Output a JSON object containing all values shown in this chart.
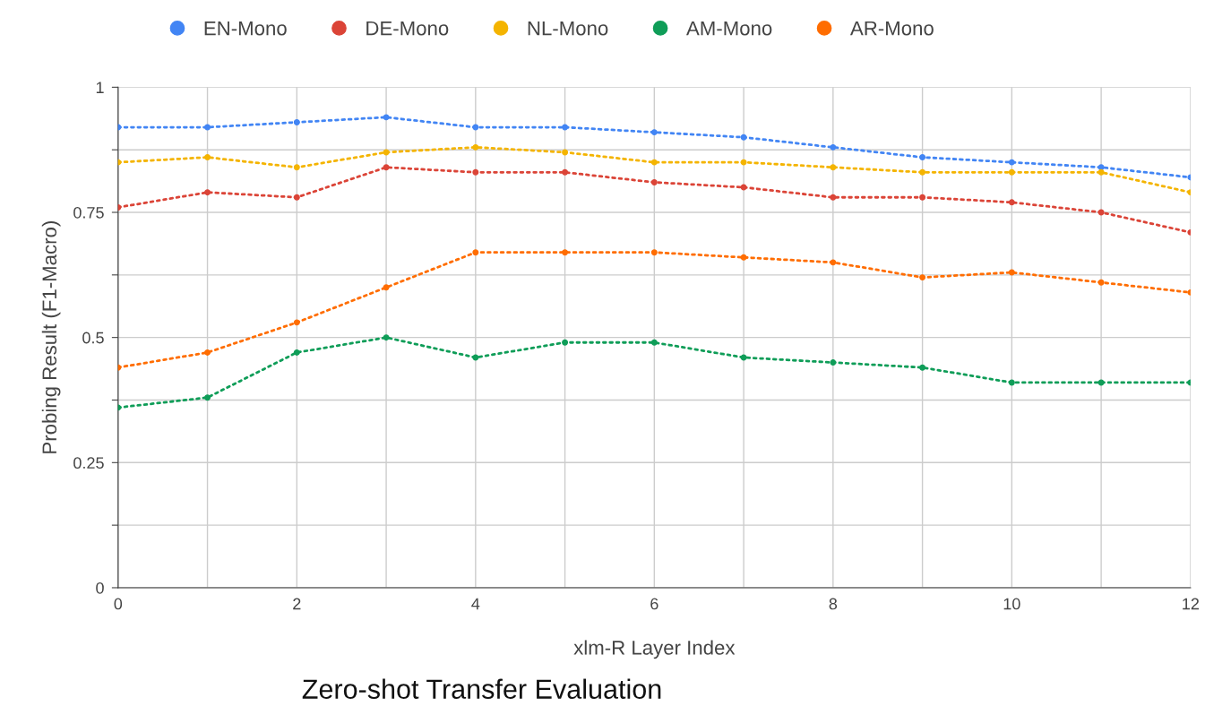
{
  "chart_data": {
    "type": "line",
    "title": "Zero-shot Transfer Evaluation",
    "xlabel": "xlm-R Layer Index",
    "ylabel": "Probing Result (F1-Macro)",
    "x": [
      0,
      1,
      2,
      3,
      4,
      5,
      6,
      7,
      8,
      9,
      10,
      11,
      12
    ],
    "series": [
      {
        "name": "EN-Mono",
        "color": "#4285f4",
        "values": [
          0.92,
          0.92,
          0.93,
          0.94,
          0.92,
          0.92,
          0.91,
          0.9,
          0.88,
          0.86,
          0.85,
          0.84,
          0.82
        ]
      },
      {
        "name": "DE-Mono",
        "color": "#db4437",
        "values": [
          0.76,
          0.79,
          0.78,
          0.84,
          0.83,
          0.83,
          0.81,
          0.8,
          0.78,
          0.78,
          0.77,
          0.75,
          0.71
        ]
      },
      {
        "name": "NL-Mono",
        "color": "#f4b400",
        "values": [
          0.85,
          0.86,
          0.84,
          0.87,
          0.88,
          0.87,
          0.85,
          0.85,
          0.84,
          0.83,
          0.83,
          0.83,
          0.79
        ]
      },
      {
        "name": "AM-Mono",
        "color": "#0f9d58",
        "values": [
          0.36,
          0.38,
          0.47,
          0.5,
          0.46,
          0.49,
          0.49,
          0.46,
          0.45,
          0.44,
          0.41,
          0.41,
          0.41
        ]
      },
      {
        "name": "AR-Mono",
        "color": "#ff6d01",
        "values": [
          0.44,
          0.47,
          0.53,
          0.6,
          0.67,
          0.67,
          0.67,
          0.66,
          0.65,
          0.62,
          0.63,
          0.61,
          0.59
        ]
      }
    ],
    "xlim": [
      0,
      12
    ],
    "xticks": [
      0,
      {
        "value": 1,
        "label": null
      },
      2,
      {
        "value": 3,
        "label": null
      },
      4,
      {
        "value": 5,
        "label": null
      },
      6,
      {
        "value": 7,
        "label": null
      },
      8,
      {
        "value": 9,
        "label": null
      },
      10,
      {
        "value": 11,
        "label": null
      },
      12
    ],
    "ylim": [
      0,
      1
    ],
    "yticks": [
      0,
      {
        "value": 0.125,
        "label": null
      },
      0.25,
      {
        "value": 0.375,
        "label": null
      },
      0.5,
      {
        "value": 0.625,
        "label": null
      },
      0.75,
      {
        "value": 0.875,
        "label": null
      },
      1
    ],
    "grid": true,
    "legend": "top left",
    "marker": "circle",
    "line_style": "dotted"
  }
}
